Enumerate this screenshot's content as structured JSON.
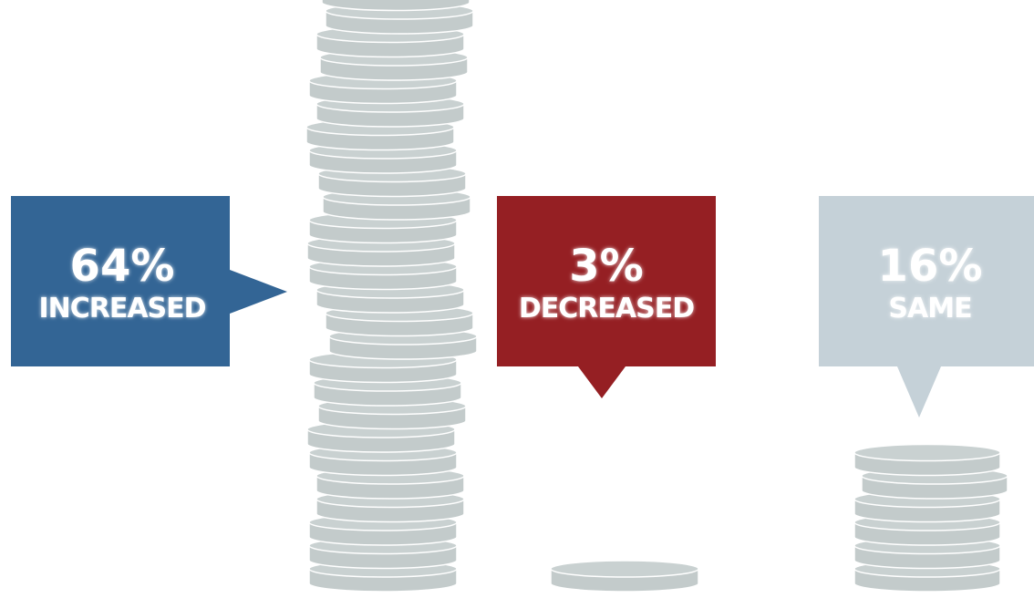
{
  "callouts": [
    {
      "value": "64%",
      "label": "INCREASED"
    },
    {
      "value": "3%",
      "label": "DECREASED"
    },
    {
      "value": "16%",
      "label": "SAME"
    }
  ]
}
